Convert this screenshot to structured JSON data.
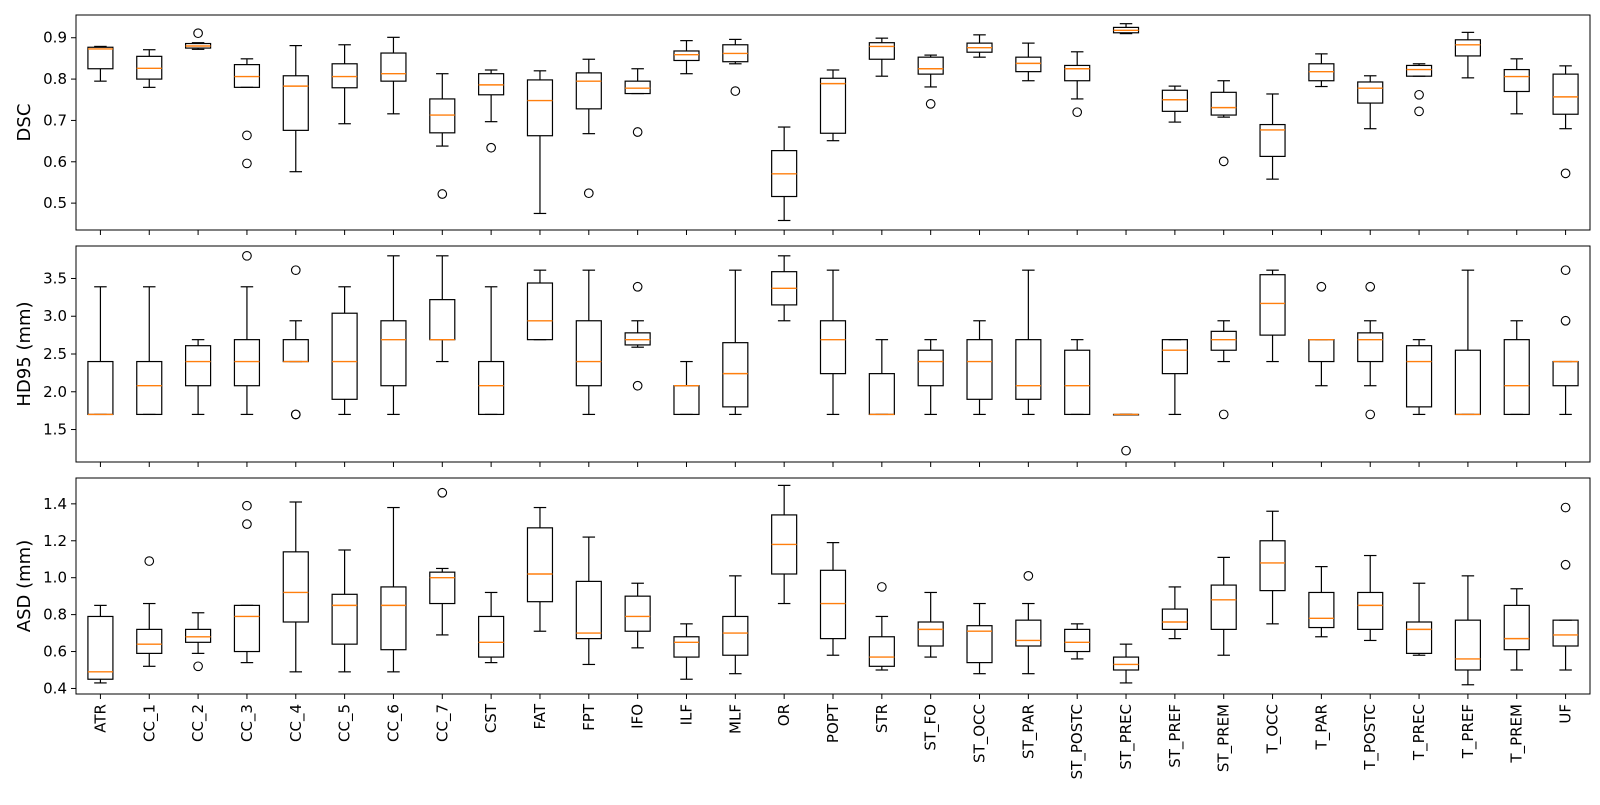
{
  "chart_data": {
    "type": "boxplot",
    "categories": [
      "ATR",
      "CC_1",
      "CC_2",
      "CC_3",
      "CC_4",
      "CC_5",
      "CC_6",
      "CC_7",
      "CST",
      "FAT",
      "FPT",
      "IFO",
      "ILF",
      "MLF",
      "OR",
      "POPT",
      "STR",
      "ST_FO",
      "ST_OCC",
      "ST_PAR",
      "ST_POSTC",
      "ST_PREC",
      "ST_PREF",
      "ST_PREM",
      "T_OCC",
      "T_PAR",
      "T_POSTC",
      "T_PREC",
      "T_PREF",
      "T_PREM",
      "UF"
    ],
    "colors": {
      "box": "#000000",
      "median": "#ff7f0e",
      "background": "#ffffff"
    },
    "panels": [
      {
        "ylabel": "DSC",
        "ylim": [
          0.435,
          0.955
        ],
        "yticks": [
          0.5,
          0.6,
          0.7,
          0.8,
          0.9
        ],
        "ytick_labels": [
          "0.5",
          "0.6",
          "0.7",
          "0.8",
          "0.9"
        ],
        "boxes": [
          {
            "whislo": 0.795,
            "q1": 0.825,
            "med": 0.873,
            "q3": 0.877,
            "whishi": 0.879,
            "fliers": []
          },
          {
            "whislo": 0.78,
            "q1": 0.8,
            "med": 0.826,
            "q3": 0.855,
            "whishi": 0.871,
            "fliers": []
          },
          {
            "whislo": 0.872,
            "q1": 0.875,
            "med": 0.88,
            "q3": 0.886,
            "whishi": 0.888,
            "fliers": [
              0.911
            ]
          },
          {
            "whislo": 0.78,
            "q1": 0.78,
            "med": 0.806,
            "q3": 0.835,
            "whishi": 0.849,
            "fliers": [
              0.664,
              0.596
            ]
          },
          {
            "whislo": 0.576,
            "q1": 0.676,
            "med": 0.783,
            "q3": 0.808,
            "whishi": 0.881,
            "fliers": []
          },
          {
            "whislo": 0.692,
            "q1": 0.779,
            "med": 0.806,
            "q3": 0.837,
            "whishi": 0.883,
            "fliers": []
          },
          {
            "whislo": 0.716,
            "q1": 0.795,
            "med": 0.813,
            "q3": 0.863,
            "whishi": 0.901,
            "fliers": []
          },
          {
            "whislo": 0.638,
            "q1": 0.67,
            "med": 0.713,
            "q3": 0.752,
            "whishi": 0.813,
            "fliers": [
              0.522
            ]
          },
          {
            "whislo": 0.697,
            "q1": 0.762,
            "med": 0.786,
            "q3": 0.813,
            "whishi": 0.822,
            "fliers": [
              0.634
            ]
          },
          {
            "whislo": 0.475,
            "q1": 0.663,
            "med": 0.748,
            "q3": 0.798,
            "whishi": 0.82,
            "fliers": []
          },
          {
            "whislo": 0.668,
            "q1": 0.728,
            "med": 0.795,
            "q3": 0.815,
            "whishi": 0.848,
            "fliers": [
              0.524
            ]
          },
          {
            "whislo": 0.765,
            "q1": 0.765,
            "med": 0.778,
            "q3": 0.795,
            "whishi": 0.825,
            "fliers": [
              0.672
            ]
          },
          {
            "whislo": 0.813,
            "q1": 0.845,
            "med": 0.859,
            "q3": 0.868,
            "whishi": 0.893,
            "fliers": []
          },
          {
            "whislo": 0.837,
            "q1": 0.842,
            "med": 0.862,
            "q3": 0.883,
            "whishi": 0.896,
            "fliers": [
              0.771
            ]
          },
          {
            "whislo": 0.458,
            "q1": 0.516,
            "med": 0.571,
            "q3": 0.627,
            "whishi": 0.684,
            "fliers": []
          },
          {
            "whislo": 0.651,
            "q1": 0.669,
            "med": 0.789,
            "q3": 0.802,
            "whishi": 0.822,
            "fliers": []
          },
          {
            "whislo": 0.807,
            "q1": 0.848,
            "med": 0.879,
            "q3": 0.888,
            "whishi": 0.899,
            "fliers": []
          },
          {
            "whislo": 0.781,
            "q1": 0.812,
            "med": 0.825,
            "q3": 0.853,
            "whishi": 0.858,
            "fliers": [
              0.74
            ]
          },
          {
            "whislo": 0.853,
            "q1": 0.865,
            "med": 0.876,
            "q3": 0.887,
            "whishi": 0.907,
            "fliers": []
          },
          {
            "whislo": 0.796,
            "q1": 0.818,
            "med": 0.838,
            "q3": 0.853,
            "whishi": 0.887,
            "fliers": []
          },
          {
            "whislo": 0.752,
            "q1": 0.796,
            "med": 0.825,
            "q3": 0.833,
            "whishi": 0.866,
            "fliers": [
              0.72
            ]
          },
          {
            "whislo": 0.91,
            "q1": 0.912,
            "med": 0.918,
            "q3": 0.925,
            "whishi": 0.934,
            "fliers": []
          },
          {
            "whislo": 0.696,
            "q1": 0.722,
            "med": 0.75,
            "q3": 0.773,
            "whishi": 0.783,
            "fliers": []
          },
          {
            "whislo": 0.708,
            "q1": 0.713,
            "med": 0.731,
            "q3": 0.768,
            "whishi": 0.796,
            "fliers": [
              0.601
            ]
          },
          {
            "whislo": 0.558,
            "q1": 0.613,
            "med": 0.677,
            "q3": 0.69,
            "whishi": 0.764,
            "fliers": []
          },
          {
            "whislo": 0.782,
            "q1": 0.796,
            "med": 0.818,
            "q3": 0.837,
            "whishi": 0.861,
            "fliers": []
          },
          {
            "whislo": 0.68,
            "q1": 0.742,
            "med": 0.778,
            "q3": 0.793,
            "whishi": 0.808,
            "fliers": []
          },
          {
            "whislo": 0.807,
            "q1": 0.807,
            "med": 0.823,
            "q3": 0.833,
            "whishi": 0.837,
            "fliers": [
              0.762,
              0.722
            ]
          },
          {
            "whislo": 0.803,
            "q1": 0.856,
            "med": 0.883,
            "q3": 0.895,
            "whishi": 0.913,
            "fliers": []
          },
          {
            "whislo": 0.716,
            "q1": 0.77,
            "med": 0.806,
            "q3": 0.823,
            "whishi": 0.849,
            "fliers": []
          },
          {
            "whislo": 0.68,
            "q1": 0.715,
            "med": 0.757,
            "q3": 0.812,
            "whishi": 0.832,
            "fliers": [
              0.572
            ]
          }
        ]
      },
      {
        "ylabel": "HD95 (mm)",
        "ylim": [
          1.07,
          3.93
        ],
        "yticks": [
          1.5,
          2.0,
          2.5,
          3.0,
          3.5
        ],
        "ytick_labels": [
          "1.5",
          "2.0",
          "2.5",
          "3.0",
          "3.5"
        ],
        "boxes": [
          {
            "whislo": 1.7,
            "q1": 1.7,
            "med": 1.7,
            "q3": 2.4,
            "whishi": 3.39,
            "fliers": []
          },
          {
            "whislo": 1.7,
            "q1": 1.7,
            "med": 2.08,
            "q3": 2.4,
            "whishi": 3.39,
            "fliers": []
          },
          {
            "whislo": 1.7,
            "q1": 2.08,
            "med": 2.4,
            "q3": 2.61,
            "whishi": 2.69,
            "fliers": []
          },
          {
            "whislo": 1.7,
            "q1": 2.08,
            "med": 2.4,
            "q3": 2.69,
            "whishi": 3.39,
            "fliers": [
              3.8
            ]
          },
          {
            "whislo": 2.4,
            "q1": 2.4,
            "med": 2.4,
            "q3": 2.69,
            "whishi": 2.94,
            "fliers": [
              3.61,
              1.7,
              1.7
            ]
          },
          {
            "whislo": 1.7,
            "q1": 1.9,
            "med": 2.4,
            "q3": 3.04,
            "whishi": 3.39,
            "fliers": []
          },
          {
            "whislo": 1.7,
            "q1": 2.08,
            "med": 2.69,
            "q3": 2.94,
            "whishi": 3.8,
            "fliers": []
          },
          {
            "whislo": 2.4,
            "q1": 2.69,
            "med": 2.69,
            "q3": 3.22,
            "whishi": 3.8,
            "fliers": []
          },
          {
            "whislo": 1.7,
            "q1": 1.7,
            "med": 2.08,
            "q3": 2.4,
            "whishi": 3.39,
            "fliers": []
          },
          {
            "whislo": 2.69,
            "q1": 2.69,
            "med": 2.94,
            "q3": 3.44,
            "whishi": 3.61,
            "fliers": []
          },
          {
            "whislo": 1.7,
            "q1": 2.08,
            "med": 2.4,
            "q3": 2.94,
            "whishi": 3.61,
            "fliers": []
          },
          {
            "whislo": 2.59,
            "q1": 2.62,
            "med": 2.69,
            "q3": 2.78,
            "whishi": 2.94,
            "fliers": [
              3.39,
              2.08
            ]
          },
          {
            "whislo": 1.7,
            "q1": 1.7,
            "med": 2.08,
            "q3": 2.08,
            "whishi": 2.4,
            "fliers": []
          },
          {
            "whislo": 1.7,
            "q1": 1.8,
            "med": 2.24,
            "q3": 2.65,
            "whishi": 3.61,
            "fliers": []
          },
          {
            "whislo": 2.94,
            "q1": 3.15,
            "med": 3.37,
            "q3": 3.59,
            "whishi": 3.8,
            "fliers": []
          },
          {
            "whislo": 1.7,
            "q1": 2.24,
            "med": 2.69,
            "q3": 2.94,
            "whishi": 3.61,
            "fliers": []
          },
          {
            "whislo": 1.7,
            "q1": 1.7,
            "med": 1.7,
            "q3": 2.24,
            "whishi": 2.69,
            "fliers": []
          },
          {
            "whislo": 1.7,
            "q1": 2.08,
            "med": 2.4,
            "q3": 2.55,
            "whishi": 2.69,
            "fliers": []
          },
          {
            "whislo": 1.7,
            "q1": 1.9,
            "med": 2.4,
            "q3": 2.69,
            "whishi": 2.94,
            "fliers": []
          },
          {
            "whislo": 1.7,
            "q1": 1.9,
            "med": 2.08,
            "q3": 2.69,
            "whishi": 3.61,
            "fliers": []
          },
          {
            "whislo": 1.7,
            "q1": 1.7,
            "med": 2.08,
            "q3": 2.55,
            "whishi": 2.69,
            "fliers": []
          },
          {
            "whislo": 1.7,
            "q1": 1.7,
            "med": 1.7,
            "q3": 1.7,
            "whishi": 1.7,
            "fliers": [
              1.22
            ]
          },
          {
            "whislo": 1.7,
            "q1": 2.24,
            "med": 2.55,
            "q3": 2.69,
            "whishi": 2.69,
            "fliers": []
          },
          {
            "whislo": 2.4,
            "q1": 2.55,
            "med": 2.69,
            "q3": 2.8,
            "whishi": 2.94,
            "fliers": [
              1.7
            ]
          },
          {
            "whislo": 2.4,
            "q1": 2.75,
            "med": 3.17,
            "q3": 3.55,
            "whishi": 3.61,
            "fliers": []
          },
          {
            "whislo": 2.08,
            "q1": 2.4,
            "med": 2.69,
            "q3": 2.69,
            "whishi": 2.69,
            "fliers": [
              3.39
            ]
          },
          {
            "whislo": 2.08,
            "q1": 2.4,
            "med": 2.69,
            "q3": 2.78,
            "whishi": 2.94,
            "fliers": [
              3.39,
              1.7
            ]
          },
          {
            "whislo": 1.7,
            "q1": 1.8,
            "med": 2.4,
            "q3": 2.61,
            "whishi": 2.69,
            "fliers": []
          },
          {
            "whislo": 1.7,
            "q1": 1.7,
            "med": 1.7,
            "q3": 2.55,
            "whishi": 3.61,
            "fliers": []
          },
          {
            "whislo": 1.7,
            "q1": 1.7,
            "med": 2.08,
            "q3": 2.69,
            "whishi": 2.94,
            "fliers": []
          },
          {
            "whislo": 1.7,
            "q1": 2.08,
            "med": 2.4,
            "q3": 2.4,
            "whishi": 2.4,
            "fliers": [
              3.61,
              2.94
            ]
          }
        ]
      },
      {
        "ylabel": "ASD (mm)",
        "ylim": [
          0.37,
          1.54
        ],
        "yticks": [
          0.4,
          0.6,
          0.8,
          1.0,
          1.2,
          1.4
        ],
        "ytick_labels": [
          "0.4",
          "0.6",
          "0.8",
          "1.0",
          "1.2",
          "1.4"
        ],
        "boxes": [
          {
            "whislo": 0.43,
            "q1": 0.45,
            "med": 0.49,
            "q3": 0.79,
            "whishi": 0.85,
            "fliers": []
          },
          {
            "whislo": 0.52,
            "q1": 0.59,
            "med": 0.64,
            "q3": 0.72,
            "whishi": 0.86,
            "fliers": [
              1.09
            ]
          },
          {
            "whislo": 0.59,
            "q1": 0.65,
            "med": 0.68,
            "q3": 0.72,
            "whishi": 0.81,
            "fliers": [
              0.52
            ]
          },
          {
            "whislo": 0.54,
            "q1": 0.6,
            "med": 0.79,
            "q3": 0.85,
            "whishi": 0.85,
            "fliers": [
              1.39,
              1.29
            ]
          },
          {
            "whislo": 0.49,
            "q1": 0.76,
            "med": 0.92,
            "q3": 1.14,
            "whishi": 1.41,
            "fliers": []
          },
          {
            "whislo": 0.49,
            "q1": 0.64,
            "med": 0.85,
            "q3": 0.91,
            "whishi": 1.15,
            "fliers": []
          },
          {
            "whislo": 0.49,
            "q1": 0.61,
            "med": 0.85,
            "q3": 0.95,
            "whishi": 1.38,
            "fliers": []
          },
          {
            "whislo": 0.69,
            "q1": 0.86,
            "med": 1.0,
            "q3": 1.03,
            "whishi": 1.05,
            "fliers": [
              1.46
            ]
          },
          {
            "whislo": 0.54,
            "q1": 0.57,
            "med": 0.65,
            "q3": 0.79,
            "whishi": 0.92,
            "fliers": []
          },
          {
            "whislo": 0.71,
            "q1": 0.87,
            "med": 1.02,
            "q3": 1.27,
            "whishi": 1.38,
            "fliers": []
          },
          {
            "whislo": 0.53,
            "q1": 0.67,
            "med": 0.7,
            "q3": 0.98,
            "whishi": 1.22,
            "fliers": []
          },
          {
            "whislo": 0.62,
            "q1": 0.71,
            "med": 0.79,
            "q3": 0.9,
            "whishi": 0.97,
            "fliers": []
          },
          {
            "whislo": 0.45,
            "q1": 0.57,
            "med": 0.65,
            "q3": 0.68,
            "whishi": 0.75,
            "fliers": []
          },
          {
            "whislo": 0.48,
            "q1": 0.58,
            "med": 0.7,
            "q3": 0.79,
            "whishi": 1.01,
            "fliers": []
          },
          {
            "whislo": 0.86,
            "q1": 1.02,
            "med": 1.18,
            "q3": 1.34,
            "whishi": 1.5,
            "fliers": []
          },
          {
            "whislo": 0.58,
            "q1": 0.67,
            "med": 0.86,
            "q3": 1.04,
            "whishi": 1.19,
            "fliers": []
          },
          {
            "whislo": 0.5,
            "q1": 0.52,
            "med": 0.57,
            "q3": 0.68,
            "whishi": 0.79,
            "fliers": [
              0.95
            ]
          },
          {
            "whislo": 0.57,
            "q1": 0.63,
            "med": 0.72,
            "q3": 0.76,
            "whishi": 0.92,
            "fliers": []
          },
          {
            "whislo": 0.48,
            "q1": 0.54,
            "med": 0.71,
            "q3": 0.74,
            "whishi": 0.86,
            "fliers": []
          },
          {
            "whislo": 0.48,
            "q1": 0.63,
            "med": 0.66,
            "q3": 0.77,
            "whishi": 0.86,
            "fliers": [
              1.01
            ]
          },
          {
            "whislo": 0.56,
            "q1": 0.6,
            "med": 0.65,
            "q3": 0.72,
            "whishi": 0.75,
            "fliers": []
          },
          {
            "whislo": 0.43,
            "q1": 0.5,
            "med": 0.53,
            "q3": 0.57,
            "whishi": 0.64,
            "fliers": []
          },
          {
            "whislo": 0.67,
            "q1": 0.72,
            "med": 0.76,
            "q3": 0.83,
            "whishi": 0.95,
            "fliers": []
          },
          {
            "whislo": 0.58,
            "q1": 0.72,
            "med": 0.88,
            "q3": 0.96,
            "whishi": 1.11,
            "fliers": []
          },
          {
            "whislo": 0.75,
            "q1": 0.93,
            "med": 1.08,
            "q3": 1.2,
            "whishi": 1.36,
            "fliers": []
          },
          {
            "whislo": 0.68,
            "q1": 0.73,
            "med": 0.78,
            "q3": 0.92,
            "whishi": 1.06,
            "fliers": []
          },
          {
            "whislo": 0.66,
            "q1": 0.72,
            "med": 0.85,
            "q3": 0.92,
            "whishi": 1.12,
            "fliers": []
          },
          {
            "whislo": 0.58,
            "q1": 0.59,
            "med": 0.72,
            "q3": 0.76,
            "whishi": 0.97,
            "fliers": []
          },
          {
            "whislo": 0.42,
            "q1": 0.5,
            "med": 0.56,
            "q3": 0.77,
            "whishi": 1.01,
            "fliers": []
          },
          {
            "whislo": 0.5,
            "q1": 0.61,
            "med": 0.67,
            "q3": 0.85,
            "whishi": 0.94,
            "fliers": []
          },
          {
            "whislo": 0.5,
            "q1": 0.63,
            "med": 0.69,
            "q3": 0.77,
            "whishi": 0.77,
            "fliers": [
              1.38,
              1.07
            ]
          }
        ]
      }
    ]
  }
}
